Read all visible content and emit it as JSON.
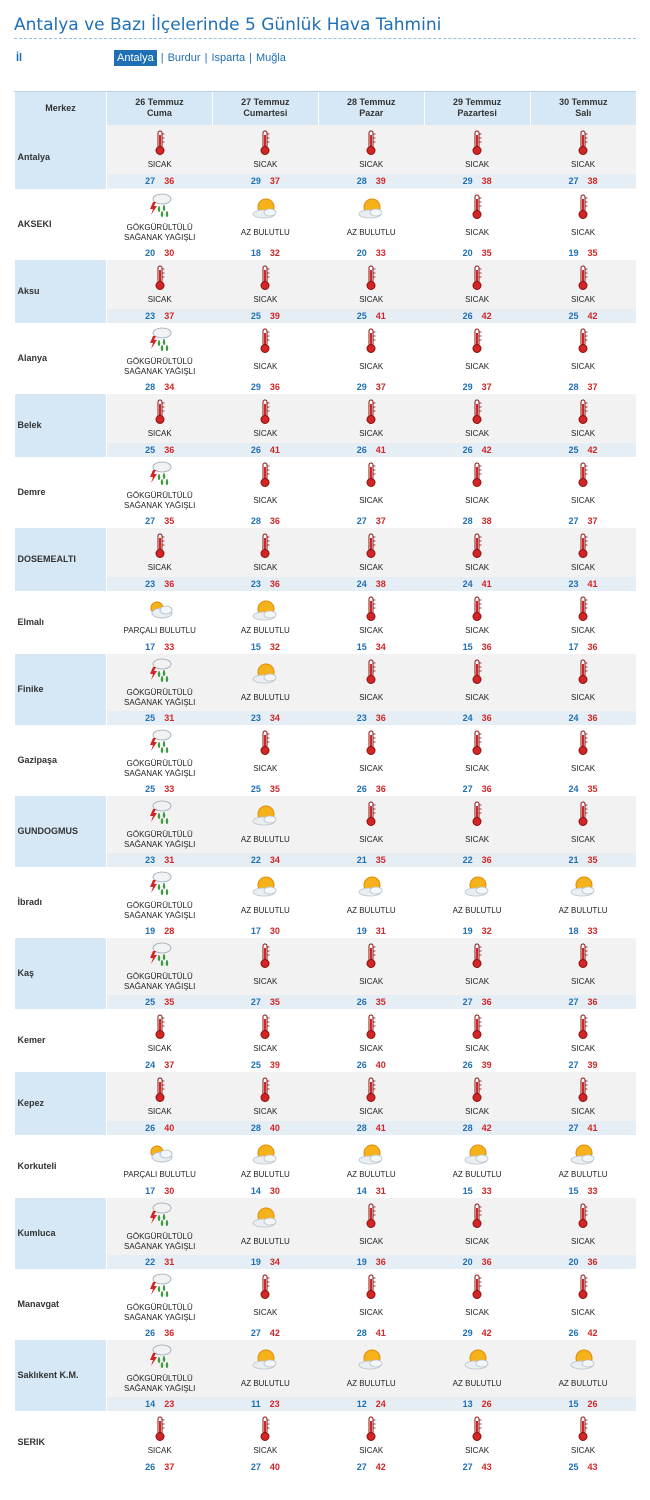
{
  "page": {
    "title": "Antalya ve Bazı İlçelerinde 5 Günlük Hava Tahmini",
    "il_label": "İl",
    "regions": [
      "Antalya",
      "Burdur",
      "Isparta",
      "Muğla"
    ],
    "active_region": "Antalya",
    "separator": "|"
  },
  "table": {
    "center_header": "Merkez",
    "days": [
      {
        "date": "26 Temmuz",
        "weekday": "Cuma"
      },
      {
        "date": "27 Temmuz",
        "weekday": "Cumartesi"
      },
      {
        "date": "28 Temmuz",
        "weekday": "Pazar"
      },
      {
        "date": "29 Temmuz",
        "weekday": "Pazartesi"
      },
      {
        "date": "30 Temmuz",
        "weekday": "Salı"
      }
    ],
    "colors": {
      "min": "#1f6fb5",
      "max": "#d32525",
      "header_bg": "#d6e8f5",
      "shade_bg": "#f2f2f2"
    },
    "rows": [
      {
        "city": "Antalya",
        "cells": [
          {
            "icon": "hot-thermometer-icon",
            "cond": "SICAK",
            "min": "27",
            "max": "36"
          },
          {
            "icon": "hot-thermometer-icon",
            "cond": "SICAK",
            "min": "29",
            "max": "37"
          },
          {
            "icon": "hot-thermometer-icon",
            "cond": "SICAK",
            "min": "28",
            "max": "39"
          },
          {
            "icon": "hot-thermometer-icon",
            "cond": "SICAK",
            "min": "29",
            "max": "38"
          },
          {
            "icon": "hot-thermometer-icon",
            "cond": "SICAK",
            "min": "27",
            "max": "38"
          }
        ]
      },
      {
        "city": "AKSEKI",
        "cells": [
          {
            "icon": "thunderstorm-icon",
            "cond": "GÖKGÜRÜLTÜLÜ SAĞANAK YAĞIŞLI",
            "min": "20",
            "max": "30"
          },
          {
            "icon": "partly-sunny-icon",
            "cond": "AZ BULUTLU",
            "min": "18",
            "max": "32"
          },
          {
            "icon": "partly-sunny-icon",
            "cond": "AZ BULUTLU",
            "min": "20",
            "max": "33"
          },
          {
            "icon": "hot-thermometer-icon",
            "cond": "SICAK",
            "min": "20",
            "max": "35"
          },
          {
            "icon": "hot-thermometer-icon",
            "cond": "SICAK",
            "min": "19",
            "max": "35"
          }
        ]
      },
      {
        "city": "Aksu",
        "cells": [
          {
            "icon": "hot-thermometer-icon",
            "cond": "SICAK",
            "min": "23",
            "max": "37"
          },
          {
            "icon": "hot-thermometer-icon",
            "cond": "SICAK",
            "min": "25",
            "max": "39"
          },
          {
            "icon": "hot-thermometer-icon",
            "cond": "SICAK",
            "min": "25",
            "max": "41"
          },
          {
            "icon": "hot-thermometer-icon",
            "cond": "SICAK",
            "min": "26",
            "max": "42"
          },
          {
            "icon": "hot-thermometer-icon",
            "cond": "SICAK",
            "min": "25",
            "max": "42"
          }
        ]
      },
      {
        "city": "Alanya",
        "cells": [
          {
            "icon": "thunderstorm-icon",
            "cond": "GÖKGÜRÜLTÜLÜ SAĞANAK YAĞIŞLI",
            "min": "28",
            "max": "34"
          },
          {
            "icon": "hot-thermometer-icon",
            "cond": "SICAK",
            "min": "29",
            "max": "36"
          },
          {
            "icon": "hot-thermometer-icon",
            "cond": "SICAK",
            "min": "29",
            "max": "37"
          },
          {
            "icon": "hot-thermometer-icon",
            "cond": "SICAK",
            "min": "29",
            "max": "37"
          },
          {
            "icon": "hot-thermometer-icon",
            "cond": "SICAK",
            "min": "28",
            "max": "37"
          }
        ]
      },
      {
        "city": "Belek",
        "cells": [
          {
            "icon": "hot-thermometer-icon",
            "cond": "SICAK",
            "min": "25",
            "max": "36"
          },
          {
            "icon": "hot-thermometer-icon",
            "cond": "SICAK",
            "min": "26",
            "max": "41"
          },
          {
            "icon": "hot-thermometer-icon",
            "cond": "SICAK",
            "min": "26",
            "max": "41"
          },
          {
            "icon": "hot-thermometer-icon",
            "cond": "SICAK",
            "min": "26",
            "max": "42"
          },
          {
            "icon": "hot-thermometer-icon",
            "cond": "SICAK",
            "min": "25",
            "max": "42"
          }
        ]
      },
      {
        "city": "Demre",
        "cells": [
          {
            "icon": "thunderstorm-icon",
            "cond": "GÖKGÜRÜLTÜLÜ SAĞANAK YAĞIŞLI",
            "min": "27",
            "max": "35"
          },
          {
            "icon": "hot-thermometer-icon",
            "cond": "SICAK",
            "min": "28",
            "max": "36"
          },
          {
            "icon": "hot-thermometer-icon",
            "cond": "SICAK",
            "min": "27",
            "max": "37"
          },
          {
            "icon": "hot-thermometer-icon",
            "cond": "SICAK",
            "min": "28",
            "max": "38"
          },
          {
            "icon": "hot-thermometer-icon",
            "cond": "SICAK",
            "min": "27",
            "max": "37"
          }
        ]
      },
      {
        "city": "DOSEMEALTI",
        "cells": [
          {
            "icon": "hot-thermometer-icon",
            "cond": "SICAK",
            "min": "23",
            "max": "36"
          },
          {
            "icon": "hot-thermometer-icon",
            "cond": "SICAK",
            "min": "23",
            "max": "36"
          },
          {
            "icon": "hot-thermometer-icon",
            "cond": "SICAK",
            "min": "24",
            "max": "38"
          },
          {
            "icon": "hot-thermometer-icon",
            "cond": "SICAK",
            "min": "24",
            "max": "41"
          },
          {
            "icon": "hot-thermometer-icon",
            "cond": "SICAK",
            "min": "23",
            "max": "41"
          }
        ]
      },
      {
        "city": "Elmalı",
        "cells": [
          {
            "icon": "partly-cloudy-icon",
            "cond": "PARÇALI BULUTLU",
            "min": "17",
            "max": "33"
          },
          {
            "icon": "partly-sunny-icon",
            "cond": "AZ BULUTLU",
            "min": "15",
            "max": "32"
          },
          {
            "icon": "hot-thermometer-icon",
            "cond": "SICAK",
            "min": "15",
            "max": "34"
          },
          {
            "icon": "hot-thermometer-icon",
            "cond": "SICAK",
            "min": "15",
            "max": "36"
          },
          {
            "icon": "hot-thermometer-icon",
            "cond": "SICAK",
            "min": "17",
            "max": "36"
          }
        ]
      },
      {
        "city": "Finike",
        "cells": [
          {
            "icon": "thunderstorm-icon",
            "cond": "GÖKGÜRÜLTÜLÜ SAĞANAK YAĞIŞLI",
            "min": "25",
            "max": "31"
          },
          {
            "icon": "partly-sunny-icon",
            "cond": "AZ BULUTLU",
            "min": "23",
            "max": "34"
          },
          {
            "icon": "hot-thermometer-icon",
            "cond": "SICAK",
            "min": "23",
            "max": "36"
          },
          {
            "icon": "hot-thermometer-icon",
            "cond": "SICAK",
            "min": "24",
            "max": "36"
          },
          {
            "icon": "hot-thermometer-icon",
            "cond": "SICAK",
            "min": "24",
            "max": "36"
          }
        ]
      },
      {
        "city": "Gazipaşa",
        "cells": [
          {
            "icon": "thunderstorm-icon",
            "cond": "GÖKGÜRÜLTÜLÜ SAĞANAK YAĞIŞLI",
            "min": "25",
            "max": "33"
          },
          {
            "icon": "hot-thermometer-icon",
            "cond": "SICAK",
            "min": "25",
            "max": "35"
          },
          {
            "icon": "hot-thermometer-icon",
            "cond": "SICAK",
            "min": "26",
            "max": "36"
          },
          {
            "icon": "hot-thermometer-icon",
            "cond": "SICAK",
            "min": "27",
            "max": "36"
          },
          {
            "icon": "hot-thermometer-icon",
            "cond": "SICAK",
            "min": "24",
            "max": "35"
          }
        ]
      },
      {
        "city": "GUNDOGMUS",
        "cells": [
          {
            "icon": "thunderstorm-icon",
            "cond": "GÖKGÜRÜLTÜLÜ SAĞANAK YAĞIŞLI",
            "min": "23",
            "max": "31"
          },
          {
            "icon": "partly-sunny-icon",
            "cond": "AZ BULUTLU",
            "min": "22",
            "max": "34"
          },
          {
            "icon": "hot-thermometer-icon",
            "cond": "SICAK",
            "min": "21",
            "max": "35"
          },
          {
            "icon": "hot-thermometer-icon",
            "cond": "SICAK",
            "min": "22",
            "max": "36"
          },
          {
            "icon": "hot-thermometer-icon",
            "cond": "SICAK",
            "min": "21",
            "max": "35"
          }
        ]
      },
      {
        "city": "İbradı",
        "cells": [
          {
            "icon": "thunderstorm-icon",
            "cond": "GÖKGÜRÜLTÜLÜ SAĞANAK YAĞIŞLI",
            "min": "19",
            "max": "28"
          },
          {
            "icon": "partly-sunny-icon",
            "cond": "AZ BULUTLU",
            "min": "17",
            "max": "30"
          },
          {
            "icon": "partly-sunny-icon",
            "cond": "AZ BULUTLU",
            "min": "19",
            "max": "31"
          },
          {
            "icon": "partly-sunny-icon",
            "cond": "AZ BULUTLU",
            "min": "19",
            "max": "32"
          },
          {
            "icon": "partly-sunny-icon",
            "cond": "AZ BULUTLU",
            "min": "18",
            "max": "33"
          }
        ]
      },
      {
        "city": "Kaş",
        "cells": [
          {
            "icon": "thunderstorm-icon",
            "cond": "GÖKGÜRÜLTÜLÜ SAĞANAK YAĞIŞLI",
            "min": "25",
            "max": "35"
          },
          {
            "icon": "hot-thermometer-icon",
            "cond": "SICAK",
            "min": "27",
            "max": "35"
          },
          {
            "icon": "hot-thermometer-icon",
            "cond": "SICAK",
            "min": "26",
            "max": "35"
          },
          {
            "icon": "hot-thermometer-icon",
            "cond": "SICAK",
            "min": "27",
            "max": "36"
          },
          {
            "icon": "hot-thermometer-icon",
            "cond": "SICAK",
            "min": "27",
            "max": "36"
          }
        ]
      },
      {
        "city": "Kemer",
        "cells": [
          {
            "icon": "hot-thermometer-icon",
            "cond": "SICAK",
            "min": "24",
            "max": "37"
          },
          {
            "icon": "hot-thermometer-icon",
            "cond": "SICAK",
            "min": "25",
            "max": "39"
          },
          {
            "icon": "hot-thermometer-icon",
            "cond": "SICAK",
            "min": "26",
            "max": "40"
          },
          {
            "icon": "hot-thermometer-icon",
            "cond": "SICAK",
            "min": "26",
            "max": "39"
          },
          {
            "icon": "hot-thermometer-icon",
            "cond": "SICAK",
            "min": "27",
            "max": "39"
          }
        ]
      },
      {
        "city": "Kepez",
        "cells": [
          {
            "icon": "hot-thermometer-icon",
            "cond": "SICAK",
            "min": "26",
            "max": "40"
          },
          {
            "icon": "hot-thermometer-icon",
            "cond": "SICAK",
            "min": "28",
            "max": "40"
          },
          {
            "icon": "hot-thermometer-icon",
            "cond": "SICAK",
            "min": "28",
            "max": "41"
          },
          {
            "icon": "hot-thermometer-icon",
            "cond": "SICAK",
            "min": "28",
            "max": "42"
          },
          {
            "icon": "hot-thermometer-icon",
            "cond": "SICAK",
            "min": "27",
            "max": "41"
          }
        ]
      },
      {
        "city": "Korkuteli",
        "cells": [
          {
            "icon": "partly-cloudy-icon",
            "cond": "PARÇALI BULUTLU",
            "min": "17",
            "max": "30"
          },
          {
            "icon": "partly-sunny-icon",
            "cond": "AZ BULUTLU",
            "min": "14",
            "max": "30"
          },
          {
            "icon": "partly-sunny-icon",
            "cond": "AZ BULUTLU",
            "min": "14",
            "max": "31"
          },
          {
            "icon": "partly-sunny-icon",
            "cond": "AZ BULUTLU",
            "min": "15",
            "max": "33"
          },
          {
            "icon": "partly-sunny-icon",
            "cond": "AZ BULUTLU",
            "min": "15",
            "max": "33"
          }
        ]
      },
      {
        "city": "Kumluca",
        "cells": [
          {
            "icon": "thunderstorm-icon",
            "cond": "GÖKGÜRÜLTÜLÜ SAĞANAK YAĞIŞLI",
            "min": "22",
            "max": "31"
          },
          {
            "icon": "partly-sunny-icon",
            "cond": "AZ BULUTLU",
            "min": "19",
            "max": "34"
          },
          {
            "icon": "hot-thermometer-icon",
            "cond": "SICAK",
            "min": "19",
            "max": "36"
          },
          {
            "icon": "hot-thermometer-icon",
            "cond": "SICAK",
            "min": "20",
            "max": "36"
          },
          {
            "icon": "hot-thermometer-icon",
            "cond": "SICAK",
            "min": "20",
            "max": "36"
          }
        ]
      },
      {
        "city": "Manavgat",
        "cells": [
          {
            "icon": "thunderstorm-icon",
            "cond": "GÖKGÜRÜLTÜLÜ SAĞANAK YAĞIŞLI",
            "min": "26",
            "max": "36"
          },
          {
            "icon": "hot-thermometer-icon",
            "cond": "SICAK",
            "min": "27",
            "max": "42"
          },
          {
            "icon": "hot-thermometer-icon",
            "cond": "SICAK",
            "min": "28",
            "max": "41"
          },
          {
            "icon": "hot-thermometer-icon",
            "cond": "SICAK",
            "min": "29",
            "max": "42"
          },
          {
            "icon": "hot-thermometer-icon",
            "cond": "SICAK",
            "min": "26",
            "max": "42"
          }
        ]
      },
      {
        "city": "Saklıkent K.M.",
        "cells": [
          {
            "icon": "thunderstorm-icon",
            "cond": "GÖKGÜRÜLTÜLÜ SAĞANAK YAĞIŞLI",
            "min": "14",
            "max": "23"
          },
          {
            "icon": "partly-sunny-icon",
            "cond": "AZ BULUTLU",
            "min": "11",
            "max": "23"
          },
          {
            "icon": "partly-sunny-icon",
            "cond": "AZ BULUTLU",
            "min": "12",
            "max": "24"
          },
          {
            "icon": "partly-sunny-icon",
            "cond": "AZ BULUTLU",
            "min": "13",
            "max": "26"
          },
          {
            "icon": "partly-sunny-icon",
            "cond": "AZ BULUTLU",
            "min": "15",
            "max": "26"
          }
        ]
      },
      {
        "city": "SERIK",
        "cells": [
          {
            "icon": "hot-thermometer-icon",
            "cond": "SICAK",
            "min": "26",
            "max": "37"
          },
          {
            "icon": "hot-thermometer-icon",
            "cond": "SICAK",
            "min": "27",
            "max": "40"
          },
          {
            "icon": "hot-thermometer-icon",
            "cond": "SICAK",
            "min": "27",
            "max": "42"
          },
          {
            "icon": "hot-thermometer-icon",
            "cond": "SICAK",
            "min": "27",
            "max": "43"
          },
          {
            "icon": "hot-thermometer-icon",
            "cond": "SICAK",
            "min": "25",
            "max": "43"
          }
        ]
      }
    ]
  }
}
